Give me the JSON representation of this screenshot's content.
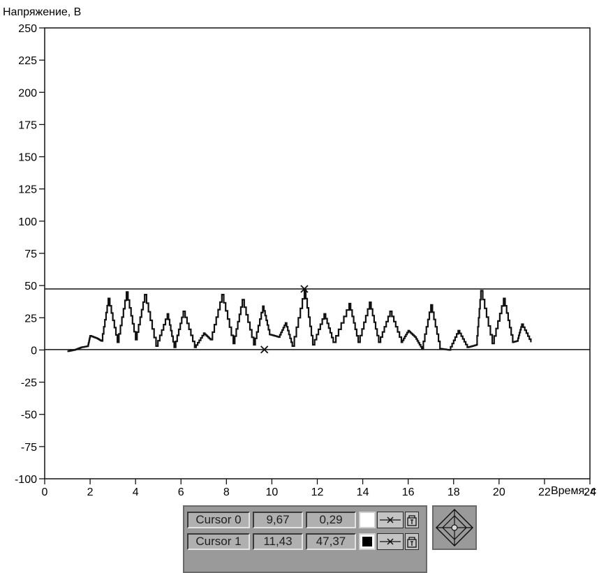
{
  "chart_data": {
    "type": "line",
    "ylabel": "Напряжение, В",
    "xlabel": "Время, с",
    "xlim": [
      0,
      24
    ],
    "ylim": [
      -100,
      250
    ],
    "xticks": [
      0,
      2,
      4,
      6,
      8,
      10,
      12,
      14,
      16,
      18,
      20,
      22,
      24
    ],
    "yticks": [
      250,
      225,
      200,
      175,
      150,
      125,
      100,
      75,
      50,
      25,
      0,
      -25,
      -50,
      -75,
      -100
    ],
    "grid": false,
    "series": [
      {
        "color": "#111111",
        "peaks": [
          [
            1.0,
            -1
          ],
          [
            1.3,
            0
          ],
          [
            1.6,
            2
          ],
          [
            1.9,
            3
          ],
          [
            2.0,
            11
          ],
          [
            2.3,
            9
          ],
          [
            2.5,
            7
          ],
          [
            2.8,
            40
          ],
          [
            3.2,
            6
          ],
          [
            3.6,
            45
          ],
          [
            4.0,
            8
          ],
          [
            4.4,
            43
          ],
          [
            4.9,
            3
          ],
          [
            5.4,
            28
          ],
          [
            5.7,
            2
          ],
          [
            6.1,
            30
          ],
          [
            6.6,
            2
          ],
          [
            7.0,
            13
          ],
          [
            7.3,
            8
          ],
          [
            7.8,
            43
          ],
          [
            8.3,
            5
          ],
          [
            8.7,
            39
          ],
          [
            9.2,
            4
          ],
          [
            9.6,
            34
          ],
          [
            9.9,
            12
          ],
          [
            10.3,
            10
          ],
          [
            10.6,
            21
          ],
          [
            10.9,
            3
          ],
          [
            11.43,
            47
          ],
          [
            11.8,
            4
          ],
          [
            12.3,
            28
          ],
          [
            12.7,
            6
          ],
          [
            13.4,
            36
          ],
          [
            13.8,
            6
          ],
          [
            14.3,
            37
          ],
          [
            14.7,
            6
          ],
          [
            15.2,
            30
          ],
          [
            15.7,
            6
          ],
          [
            16.0,
            15
          ],
          [
            16.3,
            10
          ],
          [
            16.6,
            1
          ],
          [
            17.0,
            35
          ],
          [
            17.4,
            1
          ],
          [
            17.8,
            0
          ],
          [
            18.2,
            15
          ],
          [
            18.6,
            2
          ],
          [
            19.0,
            4
          ],
          [
            19.2,
            46
          ],
          [
            19.7,
            5
          ],
          [
            20.2,
            40
          ],
          [
            20.6,
            6
          ],
          [
            20.8,
            7
          ],
          [
            21.0,
            20
          ],
          [
            21.4,
            6
          ]
        ]
      }
    ],
    "cursors": [
      {
        "name": "Cursor 0",
        "x": "9,67",
        "y": "0,29",
        "xv": 9.67,
        "yv": 0.29,
        "swatch": "white"
      },
      {
        "name": "Cursor 1",
        "x": "11,43",
        "y": "47,37",
        "xv": 11.43,
        "yv": 47.37,
        "swatch": "black"
      }
    ]
  },
  "cursor_panel": {
    "rows": [
      {
        "label": "Cursor 0",
        "x": "9,67",
        "y": "0,29"
      },
      {
        "label": "Cursor 1",
        "x": "11,43",
        "y": "47,37"
      }
    ]
  },
  "icons": {
    "cursor_style": "cursor-line-x-icon",
    "lock": "cursor-lock-icon",
    "navigator": "cursor-navigator-diamond-icon"
  }
}
